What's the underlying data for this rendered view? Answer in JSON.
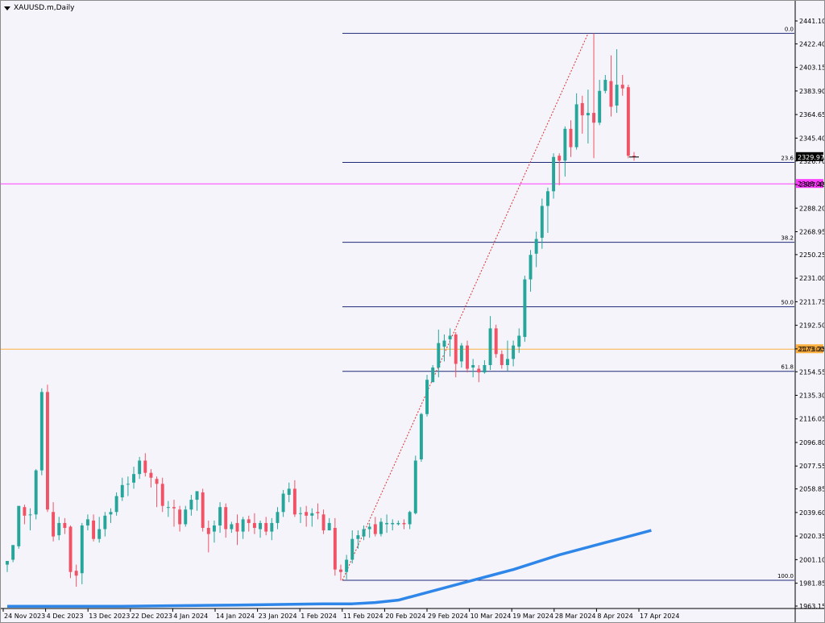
{
  "symbol_title": "XAUUSD.m,Daily",
  "colors": {
    "background": "#f4f4fa",
    "bull": "#26a69a",
    "bear": "#ef5365",
    "fib": "#1e2a78",
    "ma": "#2e86e8",
    "magenta_level": "#ff3cff",
    "orange_level": "#ffb040",
    "price_tag": "#000000"
  },
  "chart_data": {
    "type": "candlestick",
    "y_ticks": [
      "2441.10",
      "2422.40",
      "2403.15",
      "2383.90",
      "2364.65",
      "2345.40",
      "2326.70",
      "2307.45",
      "2288.20",
      "2268.95",
      "2250.25",
      "2231.00",
      "2211.75",
      "2192.50",
      "2173.25",
      "2154.55",
      "2135.30",
      "2116.05",
      "2096.80",
      "2077.55",
      "2058.85",
      "2039.60",
      "2020.35",
      "2001.10",
      "1981.85",
      "1963.15"
    ],
    "ylim": [
      1963.15,
      2441.1
    ],
    "x_ticks": [
      "24 Nov 2023",
      "4 Dec 2023",
      "13 Dec 2023",
      "22 Dec 2023",
      "4 Jan 2024",
      "14 Jan 2024",
      "23 Jan 2024",
      "1 Feb 2024",
      "11 Feb 2024",
      "20 Feb 2024",
      "29 Feb 2024",
      "10 Mar 2024",
      "19 Mar 2024",
      "28 Mar 2024",
      "8 Apr 2024",
      "17 Apr 2024"
    ],
    "current_price": "2329.97",
    "horizontal_levels": [
      {
        "label": "2308.00",
        "value": 2308.0,
        "color": "magenta"
      },
      {
        "label": "2173.00",
        "value": 2173.0,
        "color": "orange"
      }
    ],
    "fibonacci": {
      "high": 2431.0,
      "low": 1984.2,
      "levels": [
        {
          "label": "0.0",
          "value": 2431.0
        },
        {
          "label": "23.6",
          "value": 2325.6
        },
        {
          "label": "38.2",
          "value": 2260.3
        },
        {
          "label": "50.0",
          "value": 2207.6
        },
        {
          "label": "61.8",
          "value": 2154.9
        },
        {
          "label": "100.0",
          "value": 1984.2
        }
      ]
    },
    "candles": [
      [
        1997,
        2000,
        1991,
        2000
      ],
      [
        2001,
        2013,
        1999,
        2012
      ],
      [
        2012,
        2045,
        2010,
        2044
      ],
      [
        2044,
        2037,
        2030,
        2046
      ],
      [
        2038,
        2038,
        2025,
        2043
      ],
      [
        2038,
        2074,
        2034,
        2075
      ],
      [
        2074,
        2138,
        2070,
        2141
      ],
      [
        2138,
        2042,
        2040,
        2144
      ],
      [
        2040,
        2020,
        2016,
        2048
      ],
      [
        2021,
        2031,
        2017,
        2036
      ],
      [
        2031,
        2027,
        2022,
        2035
      ],
      [
        2028,
        1991,
        1986,
        2029
      ],
      [
        1992,
        1988,
        1979,
        1997
      ],
      [
        1990,
        2029,
        1981,
        2031
      ],
      [
        2029,
        2034,
        2025,
        2038
      ],
      [
        2033,
        2018,
        2016,
        2038
      ],
      [
        2018,
        2026,
        2015,
        2036
      ],
      [
        2026,
        2037,
        2020,
        2040
      ],
      [
        2038,
        2040,
        2031,
        2043
      ],
      [
        2040,
        2053,
        2037,
        2056
      ],
      [
        2052,
        2062,
        2049,
        2068
      ],
      [
        2063,
        2063,
        2053,
        2069
      ],
      [
        2064,
        2071,
        2059,
        2077
      ],
      [
        2071,
        2082,
        2067,
        2085
      ],
      [
        2082,
        2072,
        2069,
        2088
      ],
      [
        2072,
        2068,
        2060,
        2075
      ],
      [
        2067,
        2063,
        2044,
        2069
      ],
      [
        2063,
        2045,
        2040,
        2068
      ],
      [
        2044,
        2044,
        2036,
        2049
      ],
      [
        2044,
        2043,
        2028,
        2050
      ],
      [
        2042,
        2030,
        2024,
        2045
      ],
      [
        2030,
        2042,
        2028,
        2045
      ],
      [
        2042,
        2050,
        2037,
        2054
      ],
      [
        2050,
        2057,
        2041,
        2057
      ],
      [
        2056,
        2027,
        2024,
        2059
      ],
      [
        2027,
        2022,
        2007,
        2033
      ],
      [
        2024,
        2029,
        2015,
        2033
      ],
      [
        2029,
        2044,
        2023,
        2048
      ],
      [
        2044,
        2026,
        2019,
        2047
      ],
      [
        2026,
        2030,
        2023,
        2032
      ],
      [
        2031,
        2024,
        2013,
        2038
      ],
      [
        2024,
        2034,
        2018,
        2036
      ],
      [
        2034,
        2031,
        2024,
        2037
      ],
      [
        2031,
        2027,
        2022,
        2039
      ],
      [
        2026,
        2031,
        2019,
        2033
      ],
      [
        2031,
        2024,
        2021,
        2036
      ],
      [
        2024,
        2031,
        2017,
        2035
      ],
      [
        2031,
        2040,
        2026,
        2044
      ],
      [
        2040,
        2055,
        2036,
        2058
      ],
      [
        2054,
        2059,
        2048,
        2064
      ],
      [
        2059,
        2038,
        2036,
        2066
      ],
      [
        2039,
        2039,
        2031,
        2044
      ],
      [
        2040,
        2037,
        2028,
        2045
      ],
      [
        2037,
        2039,
        2028,
        2043
      ],
      [
        2040,
        2039,
        2034,
        2047
      ],
      [
        2038,
        2025,
        2022,
        2042
      ],
      [
        2025,
        2031,
        2025,
        2035
      ],
      [
        2027,
        1993,
        1988,
        2035
      ],
      [
        1993,
        1991,
        1984,
        1997
      ],
      [
        1991,
        2001,
        1985,
        2005
      ],
      [
        2001,
        2018,
        1998,
        2025
      ],
      [
        2018,
        2021,
        2010,
        2025
      ],
      [
        2020,
        2026,
        2017,
        2029
      ],
      [
        2026,
        2028,
        2019,
        2031
      ],
      [
        2030,
        2022,
        2020,
        2036
      ],
      [
        2022,
        2032,
        2020,
        2035
      ],
      [
        2030,
        2031,
        2023,
        2038
      ],
      [
        2030,
        2031,
        2025,
        2034
      ],
      [
        2030,
        2031,
        2029,
        2033
      ],
      [
        2031,
        2030,
        2026,
        2034
      ],
      [
        2030,
        2040,
        2026,
        2041
      ],
      [
        2039,
        2082,
        2038,
        2086
      ],
      [
        2083,
        2120,
        2081,
        2121
      ],
      [
        2120,
        2148,
        2118,
        2152
      ],
      [
        2146,
        2158,
        2148,
        2160
      ],
      [
        2158,
        2178,
        2150,
        2189
      ],
      [
        2175,
        2180,
        2163,
        2185
      ],
      [
        2181,
        2184,
        2167,
        2190
      ],
      [
        2185,
        2161,
        2150,
        2187
      ],
      [
        2163,
        2176,
        2158,
        2178
      ],
      [
        2176,
        2157,
        2154,
        2180
      ],
      [
        2158,
        2160,
        2150,
        2165
      ],
      [
        2157,
        2154,
        2146,
        2160
      ],
      [
        2154,
        2160,
        2153,
        2164
      ],
      [
        2160,
        2190,
        2156,
        2200
      ],
      [
        2190,
        2169,
        2166,
        2193
      ],
      [
        2169,
        2160,
        2157,
        2172
      ],
      [
        2160,
        2165,
        2155,
        2180
      ],
      [
        2165,
        2176,
        2159,
        2180
      ],
      [
        2175,
        2184,
        2170,
        2190
      ],
      [
        2183,
        2230,
        2179,
        2233
      ],
      [
        2230,
        2250,
        2220,
        2254
      ],
      [
        2251,
        2263,
        2240,
        2269
      ],
      [
        2264,
        2290,
        2255,
        2296
      ],
      [
        2290,
        2302,
        2268,
        2305
      ],
      [
        2302,
        2330,
        2296,
        2333
      ],
      [
        2331,
        2327,
        2307,
        2333
      ],
      [
        2327,
        2353,
        2314,
        2355
      ],
      [
        2353,
        2338,
        2330,
        2360
      ],
      [
        2338,
        2373,
        2336,
        2382
      ],
      [
        2374,
        2364,
        2349,
        2380
      ],
      [
        2364,
        2366,
        2341,
        2385
      ],
      [
        2366,
        2358,
        2329,
        2431
      ],
      [
        2358,
        2384,
        2356,
        2393
      ],
      [
        2384,
        2393,
        2382,
        2397
      ],
      [
        2392,
        2371,
        2363,
        2413
      ],
      [
        2372,
        2389,
        2366,
        2418
      ],
      [
        2389,
        2386,
        2380,
        2397
      ],
      [
        2387,
        2331,
        2329,
        2389
      ],
      [
        2331,
        2330,
        2327,
        2334
      ]
    ],
    "moving_average": [
      [
        0,
        1963
      ],
      [
        20,
        1963
      ],
      [
        40,
        1964
      ],
      [
        55,
        1965
      ],
      [
        60,
        1965
      ],
      [
        64,
        1966
      ],
      [
        68,
        1968
      ],
      [
        72,
        1973
      ],
      [
        76,
        1978
      ],
      [
        80,
        1983
      ],
      [
        84,
        1988
      ],
      [
        88,
        1993
      ],
      [
        92,
        1999
      ],
      [
        96,
        2005
      ],
      [
        100,
        2010
      ],
      [
        104,
        2015
      ],
      [
        108,
        2020
      ],
      [
        112,
        2025
      ]
    ]
  }
}
